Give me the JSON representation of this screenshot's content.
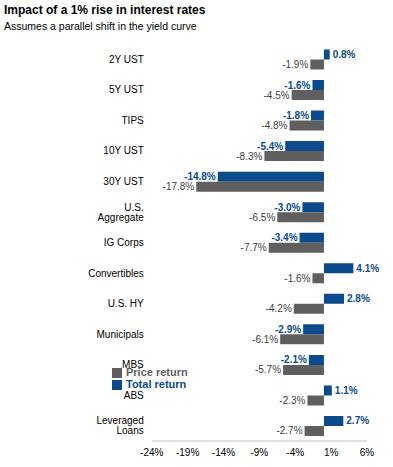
{
  "chart_data": {
    "type": "bar",
    "orientation": "horizontal",
    "title": "Impact of a 1% rise in interest rates",
    "subtitle": "Assumes a parallel shift in the yield curve",
    "categories": [
      "2Y UST",
      "5Y UST",
      "TIPS",
      "10Y UST",
      "30Y UST",
      "U.S. Aggregate",
      "IG Corps",
      "Convertibles",
      "U.S. HY",
      "Municipals",
      "MBS",
      "ABS",
      "Leveraged Loans"
    ],
    "series": [
      {
        "name": "Total return",
        "color": "#0b4a8b",
        "values": [
          0.8,
          -1.6,
          -1.8,
          -5.4,
          -14.8,
          -3.0,
          -3.4,
          4.1,
          2.8,
          -2.9,
          -2.1,
          1.1,
          2.7
        ],
        "value_labels": [
          "0.8%",
          "-1.6%",
          "-1.8%",
          "-5.4%",
          "-14.8%",
          "-3.0%",
          "-3.4%",
          "4.1%",
          "2.8%",
          "-2.9%",
          "-2.1%",
          "1.1%",
          "2.7%"
        ]
      },
      {
        "name": "Price return",
        "color": "#5f5f5f",
        "values": [
          -1.9,
          -4.5,
          -4.8,
          -8.3,
          -17.8,
          -6.5,
          -7.7,
          -1.6,
          -4.2,
          -6.1,
          -5.7,
          -2.3,
          -2.7
        ],
        "value_labels": [
          "-1.9%",
          "-4.5%",
          "-4.8%",
          "-8.3%",
          "-17.8%",
          "-6.5%",
          "-7.7%",
          "-1.6%",
          "-4.2%",
          "-6.1%",
          "-5.7%",
          "-2.3%",
          "-2.7%"
        ]
      }
    ],
    "xlim": [
      -24,
      6
    ],
    "xticks": [
      {
        "value": -24,
        "label": "-24%"
      },
      {
        "value": -19,
        "label": "-19%"
      },
      {
        "value": -14,
        "label": "-14%"
      },
      {
        "value": -9,
        "label": "-9%"
      },
      {
        "value": -4,
        "label": "-4%"
      },
      {
        "value": 1,
        "label": "1%"
      },
      {
        "value": 6,
        "label": "6%"
      }
    ],
    "data_labels": true,
    "grid": false,
    "legend": "lower left"
  }
}
